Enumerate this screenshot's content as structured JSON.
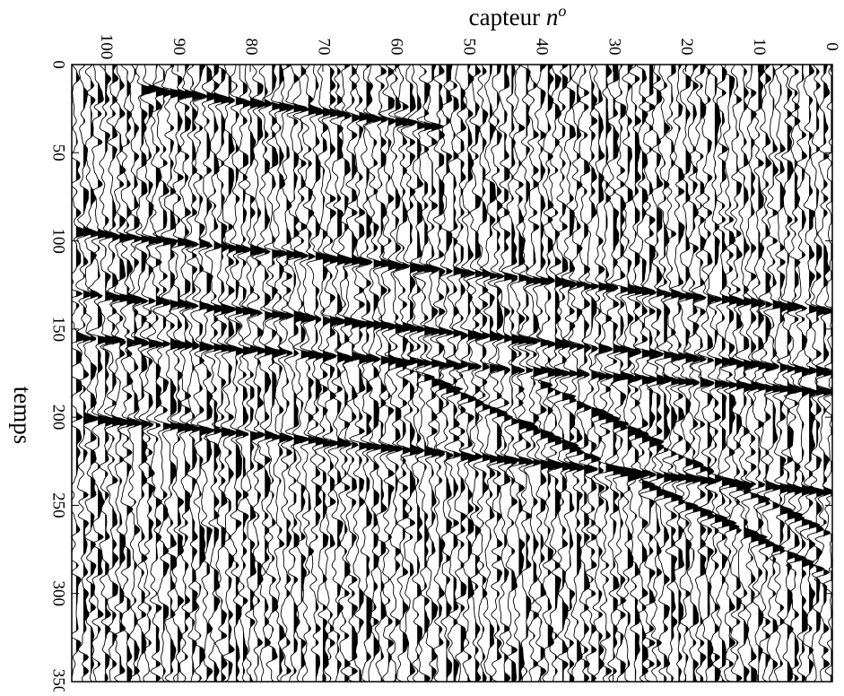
{
  "chart_data": {
    "type": "wiggle",
    "xlabel": "capteur",
    "xlabel_symbol": "n",
    "xlabel_superscript": "o",
    "ylabel": "temps",
    "xlim": [
      104.6,
      -0.2
    ],
    "xticks": [
      0,
      10,
      20,
      30,
      40,
      50,
      60,
      70,
      80,
      90,
      100
    ],
    "ylim": [
      0,
      350
    ],
    "yticks": [
      0,
      50,
      100,
      150,
      200,
      250,
      300,
      350
    ],
    "color": "#000000",
    "events": [
      {
        "x": [
          104,
          0
        ],
        "t": [
          95,
          140
        ]
      },
      {
        "x": [
          104,
          0
        ],
        "t": [
          130,
          175
        ]
      },
      {
        "x": [
          104,
          0
        ],
        "t": [
          155,
          186
        ]
      },
      {
        "x": [
          104,
          0
        ],
        "t": [
          200,
          243
        ]
      },
      {
        "x": [
          95,
          55
        ],
        "t": [
          14,
          35
        ]
      },
      {
        "x": [
          40,
          0
        ],
        "t": [
          182,
          268
        ]
      },
      {
        "x": [
          60,
          0
        ],
        "t": [
          170,
          290
        ]
      }
    ]
  }
}
